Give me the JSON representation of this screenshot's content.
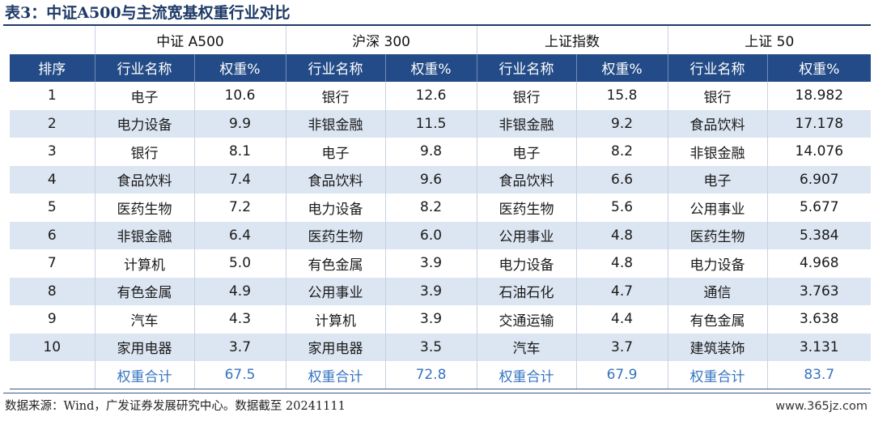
{
  "caption": "表3：中证A500与主流宽基权重行业对比",
  "groups": [
    "中证 A500",
    "沪深 300",
    "上证指数",
    "上证 50"
  ],
  "headers": {
    "rank": "排序",
    "cols": [
      "行业名称",
      "权重%",
      "行业名称",
      "权重%",
      "行业名称",
      "权重%",
      "行业名称",
      "权重%"
    ]
  },
  "rows": [
    {
      "rank": "1",
      "cells": [
        "电子",
        "10.6",
        "银行",
        "12.6",
        "银行",
        "15.8",
        "银行",
        "18.982"
      ]
    },
    {
      "rank": "2",
      "cells": [
        "电力设备",
        "9.9",
        "非银金融",
        "11.5",
        "非银金融",
        "9.2",
        "食品饮料",
        "17.178"
      ]
    },
    {
      "rank": "3",
      "cells": [
        "银行",
        "8.1",
        "电子",
        "9.8",
        "电子",
        "8.2",
        "非银金融",
        "14.076"
      ]
    },
    {
      "rank": "4",
      "cells": [
        "食品饮料",
        "7.4",
        "食品饮料",
        "9.6",
        "食品饮料",
        "6.6",
        "电子",
        "6.907"
      ]
    },
    {
      "rank": "5",
      "cells": [
        "医药生物",
        "7.2",
        "电力设备",
        "8.2",
        "医药生物",
        "5.6",
        "公用事业",
        "5.677"
      ]
    },
    {
      "rank": "6",
      "cells": [
        "非银金融",
        "6.4",
        "医药生物",
        "6.0",
        "公用事业",
        "4.8",
        "医药生物",
        "5.384"
      ]
    },
    {
      "rank": "7",
      "cells": [
        "计算机",
        "5.0",
        "有色金属",
        "3.9",
        "电力设备",
        "4.8",
        "电力设备",
        "4.968"
      ]
    },
    {
      "rank": "8",
      "cells": [
        "有色金属",
        "4.9",
        "公用事业",
        "3.9",
        "石油石化",
        "4.7",
        "通信",
        "3.763"
      ]
    },
    {
      "rank": "9",
      "cells": [
        "汽车",
        "4.3",
        "计算机",
        "3.9",
        "交通运输",
        "4.4",
        "有色金属",
        "3.638"
      ]
    },
    {
      "rank": "10",
      "cells": [
        "家用电器",
        "3.7",
        "家用电器",
        "3.5",
        "汽车",
        "3.7",
        "建筑装饰",
        "3.131"
      ]
    }
  ],
  "totals": {
    "rank": "",
    "cells": [
      "权重合计",
      "67.5",
      "权重合计",
      "72.8",
      "权重合计",
      "67.9",
      "权重合计",
      "83.7"
    ]
  },
  "footnote": "数据来源：Wind，广发证券发展研究中心。数据截至 20241111",
  "watermark": "www.365jz.com",
  "colors": {
    "header_bg": "#234b87",
    "alt_row_bg": "#dce6f2",
    "total_text": "#3674c0",
    "caption_text": "#1e3a66"
  }
}
